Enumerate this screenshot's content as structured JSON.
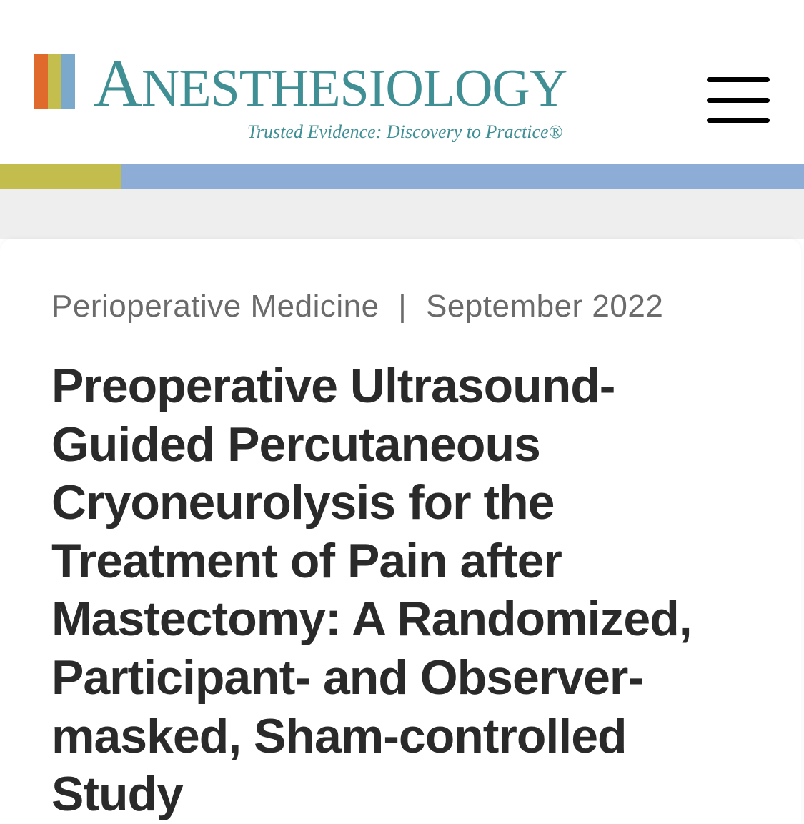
{
  "brand": {
    "title_caps": "A",
    "title_rest": "NESTHESIOLOGY",
    "title_color": "#3f8f94",
    "tagline": "Trusted Evidence: Discovery to Practice®",
    "tagline_color": "#3f8f94",
    "logo_bars": [
      "#e06a2b",
      "#c4be4e",
      "#7ba9cc"
    ]
  },
  "hamburger": {
    "line_color": "#000000"
  },
  "divider": {
    "left_color": "#c3bd4d",
    "right_color": "#8eadd6"
  },
  "page": {
    "gap_bg": "#eeeeee",
    "card_bg": "#ffffff"
  },
  "meta": {
    "category": "Perioperative Medicine",
    "category_color": "#6b6b6b",
    "date": "September 2022",
    "date_color": "#6b6b6b",
    "separator": "|"
  },
  "article": {
    "title": "Preoperative Ultrasound-Guided Percutaneous Cryoneurolysis for the Treatment of Pain after Mastectomy: A Randomized, Participant- and Observer-masked, Sham-controlled Study",
    "title_color": "#2a2a2a"
  }
}
